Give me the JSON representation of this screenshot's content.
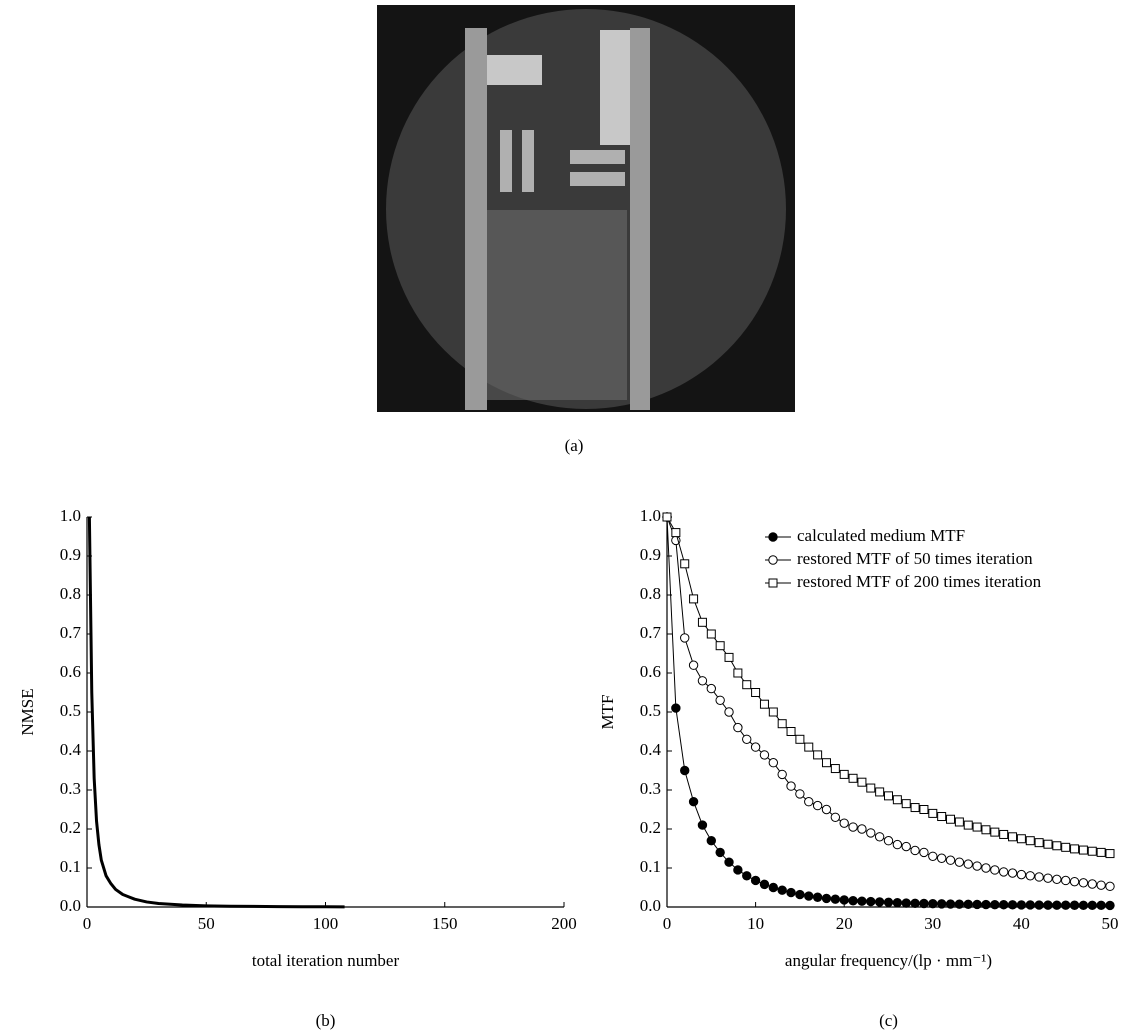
{
  "figure": {
    "image_caption": "(a)"
  },
  "chart_data": [
    {
      "type": "line",
      "caption": "(b)",
      "xlabel": "total iteration number",
      "ylabel": "NMSE",
      "xlim": [
        0,
        200
      ],
      "ylim": [
        0,
        1
      ],
      "xticks": [
        0,
        50,
        100,
        150,
        200
      ],
      "yticks": [
        {
          "value": 0,
          "label": "0.0"
        },
        0.1,
        0.2,
        0.3,
        0.4,
        0.5,
        0.6,
        0.7,
        0.8,
        0.9,
        {
          "value": 1,
          "label": "1.0"
        }
      ],
      "color": "#000000",
      "line_width": 3,
      "x": [
        1,
        2,
        3,
        4,
        5,
        6,
        8,
        10,
        12,
        15,
        20,
        25,
        30,
        40,
        50,
        60,
        70,
        80,
        90,
        100,
        108
      ],
      "values": [
        1.0,
        0.55,
        0.33,
        0.22,
        0.16,
        0.12,
        0.08,
        0.06,
        0.045,
        0.032,
        0.02,
        0.013,
        0.009,
        0.005,
        0.003,
        0.002,
        0.0015,
        0.001,
        0.0007,
        0.0005,
        0.0004
      ]
    },
    {
      "type": "line",
      "caption": "(c)",
      "xlabel": "angular frequency/(lp · mm⁻¹)",
      "ylabel": "MTF",
      "xlim": [
        0,
        50
      ],
      "ylim": [
        0,
        1
      ],
      "xticks": [
        0,
        10,
        20,
        30,
        40,
        50
      ],
      "yticks": [
        {
          "value": 0,
          "label": "0.0"
        },
        0.1,
        0.2,
        0.3,
        0.4,
        0.5,
        0.6,
        0.7,
        0.8,
        0.9,
        {
          "value": 1,
          "label": "1.0"
        }
      ],
      "legend": "upper right",
      "x": [
        0,
        1,
        2,
        3,
        4,
        5,
        6,
        7,
        8,
        9,
        10,
        11,
        12,
        13,
        14,
        15,
        16,
        17,
        18,
        19,
        20,
        21,
        22,
        23,
        24,
        25,
        26,
        27,
        28,
        29,
        30,
        31,
        32,
        33,
        34,
        35,
        36,
        37,
        38,
        39,
        40,
        41,
        42,
        43,
        44,
        45,
        46,
        47,
        48,
        49,
        50
      ],
      "series": [
        {
          "name": "calculated medium MTF",
          "color": "#000000",
          "marker": "filled-circle",
          "values": [
            1.0,
            0.51,
            0.35,
            0.27,
            0.21,
            0.17,
            0.14,
            0.115,
            0.095,
            0.08,
            0.068,
            0.058,
            0.05,
            0.043,
            0.037,
            0.032,
            0.028,
            0.025,
            0.022,
            0.02,
            0.018,
            0.016,
            0.015,
            0.014,
            0.013,
            0.012,
            0.011,
            0.01,
            0.0095,
            0.009,
            0.0085,
            0.008,
            0.0076,
            0.0072,
            0.0069,
            0.0066,
            0.0063,
            0.006,
            0.0058,
            0.0056,
            0.0054,
            0.0052,
            0.005,
            0.0048,
            0.0047,
            0.0046,
            0.0045,
            0.0044,
            0.0043,
            0.0042,
            0.0041
          ]
        },
        {
          "name": "restored MTF of 50 times iteration",
          "color": "#000000",
          "marker": "open-circle",
          "values": [
            1.0,
            0.94,
            0.69,
            0.62,
            0.58,
            0.56,
            0.53,
            0.5,
            0.46,
            0.43,
            0.41,
            0.39,
            0.37,
            0.34,
            0.31,
            0.29,
            0.27,
            0.26,
            0.25,
            0.23,
            0.215,
            0.205,
            0.2,
            0.19,
            0.18,
            0.17,
            0.16,
            0.155,
            0.145,
            0.14,
            0.13,
            0.125,
            0.12,
            0.115,
            0.11,
            0.105,
            0.1,
            0.095,
            0.09,
            0.087,
            0.083,
            0.08,
            0.077,
            0.074,
            0.071,
            0.068,
            0.065,
            0.062,
            0.059,
            0.056,
            0.053
          ]
        },
        {
          "name": "restored MTF of 200 times iteration",
          "color": "#000000",
          "marker": "open-square",
          "values": [
            1.0,
            0.96,
            0.88,
            0.79,
            0.73,
            0.7,
            0.67,
            0.64,
            0.6,
            0.57,
            0.55,
            0.52,
            0.5,
            0.47,
            0.45,
            0.43,
            0.41,
            0.39,
            0.37,
            0.355,
            0.34,
            0.33,
            0.32,
            0.305,
            0.295,
            0.285,
            0.275,
            0.265,
            0.255,
            0.25,
            0.24,
            0.232,
            0.225,
            0.218,
            0.21,
            0.205,
            0.198,
            0.192,
            0.186,
            0.18,
            0.175,
            0.17,
            0.165,
            0.161,
            0.157,
            0.153,
            0.149,
            0.146,
            0.143,
            0.14,
            0.137
          ]
        }
      ]
    }
  ]
}
